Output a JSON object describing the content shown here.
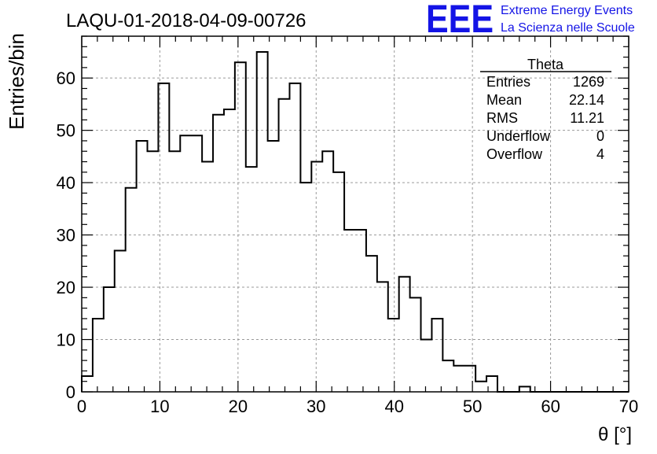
{
  "header": {
    "title": "LAQU-01-2018-04-09-00726",
    "logo_text": "EEE",
    "logo_line1": "Extreme Energy Events",
    "logo_line2": "La Scienza nelle Scuole",
    "logo_color": "#1414e6"
  },
  "stats_box": {
    "title": "Theta",
    "rows": [
      {
        "label": "Entries",
        "value": "1269"
      },
      {
        "label": "Mean",
        "value": "22.14"
      },
      {
        "label": "RMS",
        "value": "11.21"
      },
      {
        "label": "Underflow",
        "value": "0"
      },
      {
        "label": "Overflow",
        "value": "4"
      }
    ]
  },
  "chart_data": {
    "type": "bar",
    "subtype": "histogram",
    "xlabel": "θ [°]",
    "ylabel": "Entries/bin",
    "xlim": [
      0,
      70
    ],
    "ylim": [
      0,
      68
    ],
    "xticks": [
      "0",
      "10",
      "20",
      "30",
      "40",
      "50",
      "60",
      "70"
    ],
    "yticks": [
      "0",
      "10",
      "20",
      "30",
      "40",
      "50",
      "60"
    ],
    "grid": true,
    "bin_width": 1.4,
    "bin_edges_start": 0,
    "values": [
      3,
      14,
      20,
      27,
      39,
      48,
      46,
      59,
      46,
      49,
      49,
      44,
      53,
      54,
      63,
      43,
      65,
      48,
      56,
      59,
      40,
      44,
      46,
      42,
      31,
      31,
      26,
      21,
      14,
      22,
      18,
      10,
      14,
      6,
      5,
      5,
      2,
      3,
      0,
      0,
      1,
      0,
      0,
      0,
      0,
      0,
      0,
      0,
      0,
      0
    ],
    "line_color": "#000000"
  }
}
